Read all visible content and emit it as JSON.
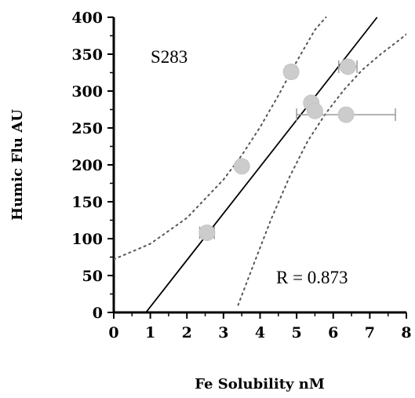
{
  "chart_data": {
    "type": "scatter",
    "title": "",
    "xlabel": "Fe Solubility nM",
    "ylabel": "Humic Flu AU",
    "xlim": [
      0,
      8
    ],
    "ylim": [
      0,
      400
    ],
    "xticks": [
      0,
      1,
      2,
      3,
      4,
      5,
      6,
      7,
      8
    ],
    "yticks": [
      0,
      50,
      100,
      150,
      200,
      250,
      300,
      350,
      400
    ],
    "grid": false,
    "annotations": [
      "S283",
      "R = 0.873"
    ],
    "points": [
      {
        "x": 2.55,
        "y": 108,
        "xerr": 0.2
      },
      {
        "x": 3.5,
        "y": 198,
        "xerr": 0
      },
      {
        "x": 4.85,
        "y": 326,
        "xerr": 0.15
      },
      {
        "x": 5.4,
        "y": 284,
        "xerr": 0
      },
      {
        "x": 5.5,
        "y": 273,
        "xerr": 0
      },
      {
        "x": 6.35,
        "y": 268,
        "xerr": 1.35
      },
      {
        "x": 6.4,
        "y": 333,
        "xerr": 0.25
      }
    ],
    "fit_line": {
      "x": [
        0.88,
        7.2
      ],
      "y": [
        0,
        400
      ]
    },
    "confidence_lower": {
      "x": [
        3.4,
        3.8,
        4.3,
        4.8,
        5.3,
        5.8,
        6.3,
        6.8,
        7.3,
        7.8,
        8.0
      ],
      "y": [
        10,
        62,
        126,
        183,
        232,
        270,
        302,
        329,
        350,
        369,
        377
      ]
    },
    "confidence_upper": {
      "x": [
        0,
        1.0,
        2.0,
        3.0,
        3.5,
        4.0,
        4.5,
        5.0,
        5.5,
        5.8
      ],
      "y": [
        72,
        93,
        128,
        180,
        213,
        251,
        294,
        340,
        383,
        400
      ]
    },
    "colors": {
      "marker": "#cccccc",
      "errorbar": "#999999",
      "fit": "#000000",
      "confidence": "#555555"
    }
  }
}
